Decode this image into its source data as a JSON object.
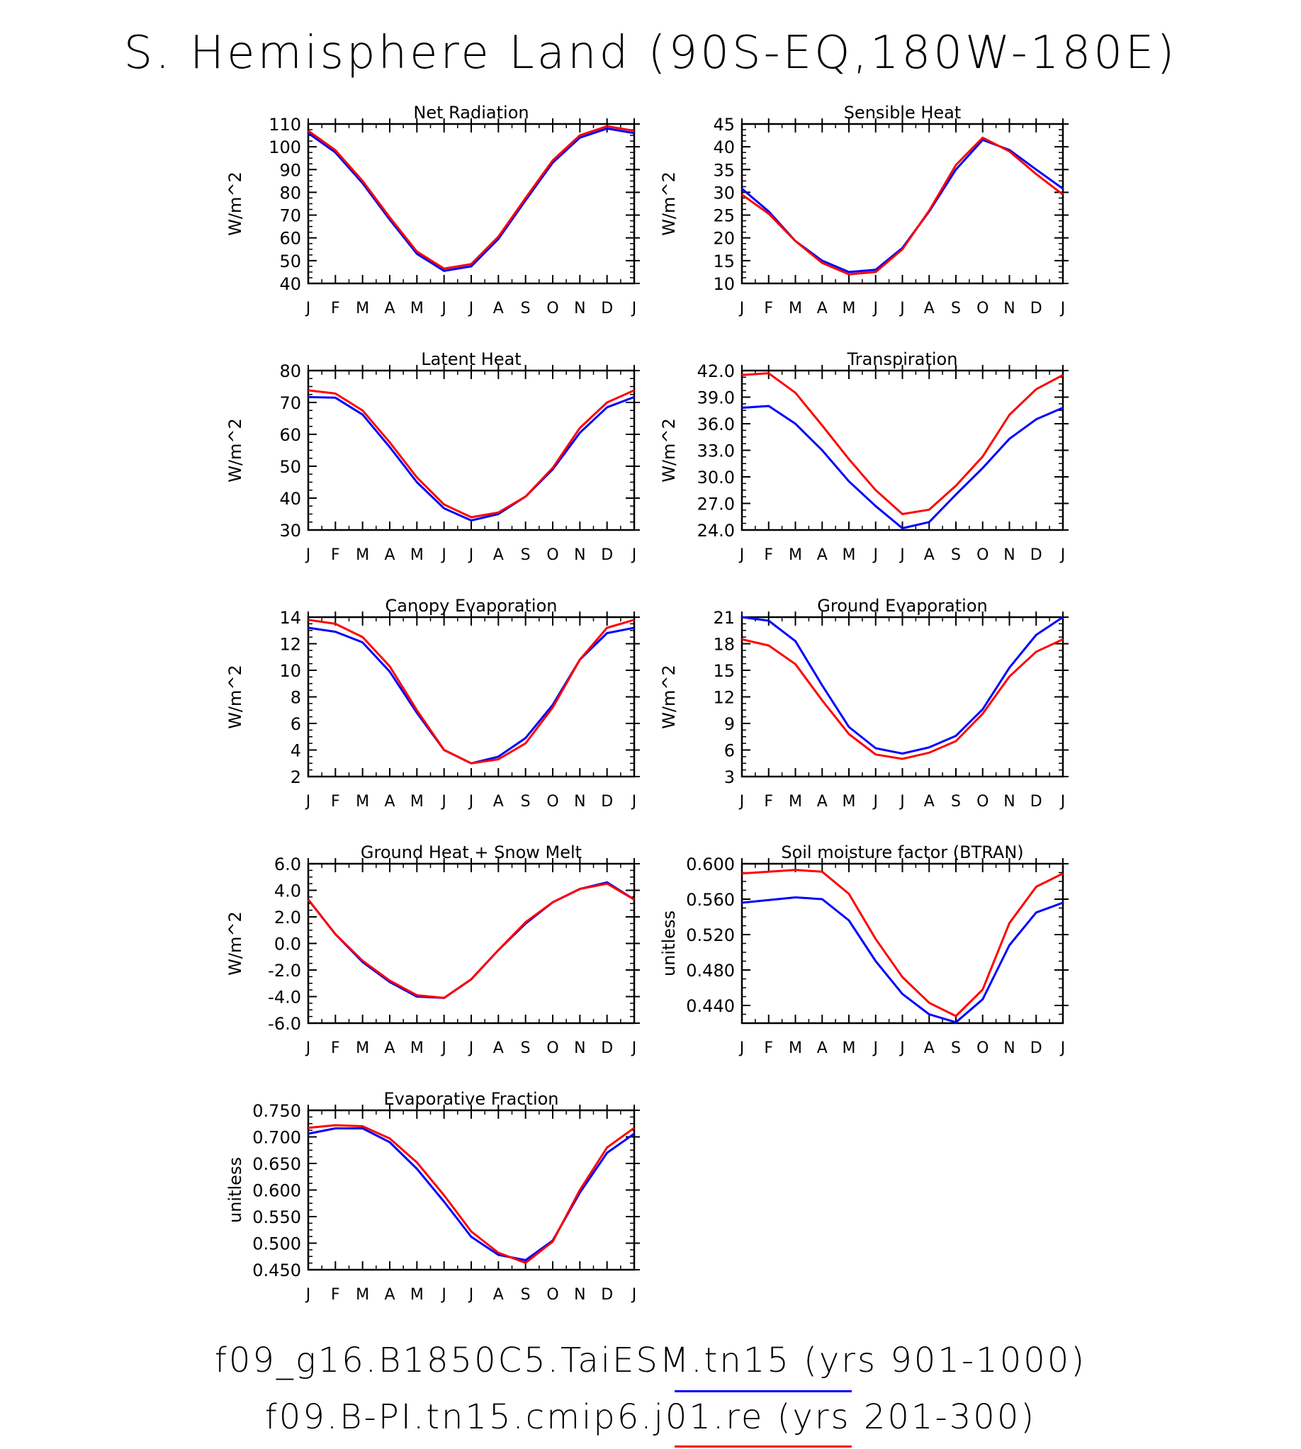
{
  "page": {
    "title": "S. Hemisphere Land (90S-EQ,180W-180E)",
    "legend": [
      {
        "label": "f09_g16.B1850C5.TaiESM.tn15 (yrs 901-1000)",
        "color": "#0000ff"
      },
      {
        "label": "f09.B-PI.tn15.cmip6.j01.re (yrs 201-300)",
        "color": "#ff0000"
      }
    ]
  },
  "colors": {
    "series_a": "#0000ff",
    "series_b": "#ff0000"
  },
  "chart_data": [
    {
      "type": "line",
      "title": "Net Radiation",
      "ylabel": "W/m^2",
      "x": [
        "J",
        "F",
        "M",
        "A",
        "M",
        "J",
        "J",
        "A",
        "S",
        "O",
        "N",
        "D",
        "J"
      ],
      "ylim": [
        40,
        110
      ],
      "yticks": [
        "40",
        "50",
        "60",
        "70",
        "80",
        "90",
        "100",
        "110"
      ],
      "series": [
        {
          "color": "#0000ff",
          "values": [
            106,
            97.5,
            84,
            68,
            53,
            45.5,
            47.5,
            59.5,
            76.5,
            93,
            104,
            108,
            106
          ]
        },
        {
          "color": "#ff0000",
          "values": [
            107,
            98.5,
            85,
            69,
            54,
            46.5,
            48.5,
            60.5,
            77.5,
            94,
            105,
            109,
            107
          ]
        }
      ]
    },
    {
      "type": "line",
      "title": "Sensible Heat",
      "ylabel": "W/m^2",
      "x": [
        "J",
        "F",
        "M",
        "A",
        "M",
        "J",
        "J",
        "A",
        "S",
        "O",
        "N",
        "D",
        "J"
      ],
      "ylim": [
        10,
        45
      ],
      "yticks": [
        "10",
        "15",
        "20",
        "25",
        "30",
        "35",
        "40",
        "45"
      ],
      "series": [
        {
          "color": "#0000ff",
          "values": [
            30.8,
            25.8,
            19.3,
            15,
            12.5,
            13,
            17.8,
            25.8,
            35,
            41.5,
            39.3,
            35,
            30.8
          ]
        },
        {
          "color": "#ff0000",
          "values": [
            29.5,
            25.3,
            19.3,
            14.5,
            12,
            12.5,
            17.5,
            26,
            36,
            42,
            39,
            34,
            29.5
          ]
        }
      ]
    },
    {
      "type": "line",
      "title": "Latent Heat",
      "ylabel": "W/m^2",
      "x": [
        "J",
        "F",
        "M",
        "A",
        "M",
        "J",
        "J",
        "A",
        "S",
        "O",
        "N",
        "D",
        "J"
      ],
      "ylim": [
        30,
        80
      ],
      "yticks": [
        "30",
        "40",
        "50",
        "60",
        "70",
        "80"
      ],
      "series": [
        {
          "color": "#0000ff",
          "values": [
            71.7,
            71.5,
            66.2,
            56,
            45,
            36.8,
            33,
            35,
            40.5,
            49,
            60.5,
            68.5,
            71.7
          ]
        },
        {
          "color": "#ff0000",
          "values": [
            73.8,
            72.8,
            67.5,
            57.5,
            46.5,
            38,
            34,
            35.5,
            40.5,
            49.5,
            62,
            70,
            73.8
          ]
        }
      ]
    },
    {
      "type": "line",
      "title": "Transpiration",
      "ylabel": "W/m^2",
      "x": [
        "J",
        "F",
        "M",
        "A",
        "M",
        "J",
        "J",
        "A",
        "S",
        "O",
        "N",
        "D",
        "J"
      ],
      "ylim": [
        24,
        42
      ],
      "yticks": [
        "24.0",
        "27.0",
        "30.0",
        "33.0",
        "36.0",
        "39.0",
        "42.0"
      ],
      "series": [
        {
          "color": "#0000ff",
          "values": [
            37.8,
            38,
            36,
            33,
            29.5,
            26.7,
            24.2,
            24.9,
            28,
            31,
            34.3,
            36.5,
            37.8
          ]
        },
        {
          "color": "#ff0000",
          "values": [
            41.5,
            41.7,
            39.5,
            35.8,
            32,
            28.5,
            25.8,
            26.3,
            29,
            32.3,
            37,
            39.9,
            41.5
          ]
        }
      ]
    },
    {
      "type": "line",
      "title": "Canopy Evaporation",
      "ylabel": "W/m^2",
      "x": [
        "J",
        "F",
        "M",
        "A",
        "M",
        "J",
        "J",
        "A",
        "S",
        "O",
        "N",
        "D",
        "J"
      ],
      "ylim": [
        2,
        14
      ],
      "yticks": [
        "2",
        "4",
        "6",
        "8",
        "10",
        "12",
        "14"
      ],
      "series": [
        {
          "color": "#0000ff",
          "values": [
            13.2,
            12.9,
            12.1,
            9.9,
            6.8,
            4,
            3,
            3.5,
            4.9,
            7.4,
            10.8,
            12.8,
            13.2
          ]
        },
        {
          "color": "#ff0000",
          "values": [
            13.8,
            13.5,
            12.5,
            10.3,
            7,
            4,
            3,
            3.3,
            4.5,
            7.2,
            10.8,
            13.2,
            13.8
          ]
        }
      ]
    },
    {
      "type": "line",
      "title": "Ground Evaporation",
      "ylabel": "W/m^2",
      "x": [
        "J",
        "F",
        "M",
        "A",
        "M",
        "J",
        "J",
        "A",
        "S",
        "O",
        "N",
        "D",
        "J"
      ],
      "ylim": [
        3,
        21
      ],
      "yticks": [
        "3",
        "6",
        "9",
        "12",
        "15",
        "18",
        "21"
      ],
      "series": [
        {
          "color": "#0000ff",
          "values": [
            21,
            20.6,
            18.3,
            13.3,
            8.6,
            6.2,
            5.6,
            6.3,
            7.6,
            10.6,
            15.3,
            19,
            21
          ]
        },
        {
          "color": "#ff0000",
          "values": [
            18.5,
            17.8,
            15.7,
            11.6,
            7.8,
            5.5,
            5,
            5.7,
            7,
            10.1,
            14.3,
            17.1,
            18.5
          ]
        }
      ]
    },
    {
      "type": "line",
      "title": "Ground Heat + Snow Melt",
      "ylabel": "W/m^2",
      "x": [
        "J",
        "F",
        "M",
        "A",
        "M",
        "J",
        "J",
        "A",
        "S",
        "O",
        "N",
        "D",
        "J"
      ],
      "ylim": [
        -6,
        6
      ],
      "yticks": [
        "-6.0",
        "-4.0",
        "-2.0",
        "0.0",
        "2.0",
        "4.0",
        "6.0"
      ],
      "series": [
        {
          "color": "#0000ff",
          "values": [
            3.3,
            0.7,
            -1.4,
            -2.9,
            -4,
            -4.1,
            -2.7,
            -0.5,
            1.5,
            3.1,
            4.1,
            4.6,
            3.3
          ]
        },
        {
          "color": "#ff0000",
          "values": [
            3.3,
            0.7,
            -1.3,
            -2.8,
            -3.9,
            -4.1,
            -2.7,
            -0.5,
            1.6,
            3.1,
            4.1,
            4.5,
            3.3
          ]
        }
      ]
    },
    {
      "type": "line",
      "title": "Soil moisture factor (BTRAN)",
      "ylabel": "unitless",
      "x": [
        "J",
        "F",
        "M",
        "A",
        "M",
        "J",
        "J",
        "A",
        "S",
        "O",
        "N",
        "D",
        "J"
      ],
      "ylim": [
        0.42,
        0.6
      ],
      "yticks": [
        "0.440",
        "0.480",
        "0.520",
        "0.560",
        "0.600"
      ],
      "series": [
        {
          "color": "#0000ff",
          "values": [
            0.556,
            0.559,
            0.562,
            0.56,
            0.536,
            0.49,
            0.453,
            0.43,
            0.421,
            0.447,
            0.508,
            0.545,
            0.556
          ]
        },
        {
          "color": "#ff0000",
          "values": [
            0.589,
            0.591,
            0.593,
            0.591,
            0.566,
            0.515,
            0.472,
            0.443,
            0.428,
            0.458,
            0.533,
            0.574,
            0.589
          ]
        }
      ]
    },
    {
      "type": "line",
      "title": "Evaporative Fraction",
      "ylabel": "unitless",
      "x": [
        "J",
        "F",
        "M",
        "A",
        "M",
        "J",
        "J",
        "A",
        "S",
        "O",
        "N",
        "D",
        "J"
      ],
      "ylim": [
        0.45,
        0.75
      ],
      "yticks": [
        "0.450",
        "0.500",
        "0.550",
        "0.600",
        "0.650",
        "0.700",
        "0.750"
      ],
      "series": [
        {
          "color": "#0000ff",
          "values": [
            0.706,
            0.716,
            0.716,
            0.69,
            0.64,
            0.578,
            0.512,
            0.478,
            0.468,
            0.505,
            0.595,
            0.67,
            0.706
          ]
        },
        {
          "color": "#ff0000",
          "values": [
            0.717,
            0.722,
            0.72,
            0.697,
            0.652,
            0.59,
            0.522,
            0.482,
            0.463,
            0.503,
            0.6,
            0.68,
            0.717
          ]
        }
      ]
    }
  ]
}
